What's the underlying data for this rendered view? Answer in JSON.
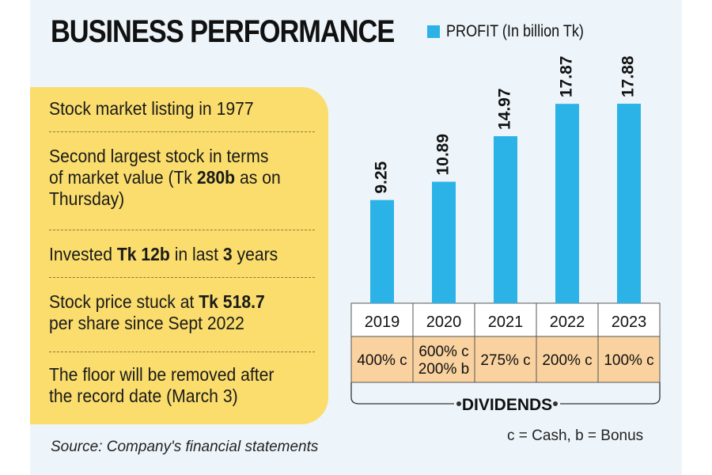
{
  "title": "BUSINESS PERFORMANCE",
  "legend": {
    "label": "PROFIT (In billion Tk)",
    "color": "#2bb3e8"
  },
  "facts": [
    {
      "parts": [
        {
          "t": "Stock market listing in 1977",
          "b": false
        }
      ]
    },
    {
      "parts": [
        {
          "t": "Second largest stock in terms of market value (Tk ",
          "b": false
        },
        {
          "t": "280b",
          "b": true
        },
        {
          "t": " as on Thursday)",
          "b": false
        }
      ]
    },
    {
      "parts": [
        {
          "t": "Invested ",
          "b": false
        },
        {
          "t": "Tk 12b",
          "b": true
        },
        {
          "t": " in last ",
          "b": false
        },
        {
          "t": "3",
          "b": true
        },
        {
          "t": " years",
          "b": false
        }
      ]
    },
    {
      "parts": [
        {
          "t": "Stock price stuck at ",
          "b": false
        },
        {
          "t": "Tk 518.7",
          "b": true
        },
        {
          "t": " per share since Sept 2022",
          "b": false
        }
      ]
    },
    {
      "parts": [
        {
          "t": "The floor will be removed after the record date (March 3)",
          "b": false
        }
      ]
    }
  ],
  "chart_data": {
    "type": "bar",
    "categories": [
      "2019",
      "2020",
      "2021",
      "2022",
      "2023"
    ],
    "values": [
      9.25,
      10.89,
      14.97,
      17.87,
      17.88
    ],
    "value_labels": [
      "9.25",
      "10.89",
      "14.97",
      "17.87",
      "17.88"
    ],
    "series_name": "PROFIT (In billion Tk)",
    "ylim": [
      0,
      21.5
    ],
    "dividends": [
      [
        "400% c"
      ],
      [
        "600% c",
        "200% b"
      ],
      [
        "275% c"
      ],
      [
        "200% c"
      ],
      [
        "100% c"
      ]
    ],
    "dividends_label": "DIVIDENDS",
    "bar_color": "#2bb3e8",
    "dividend_band_color": "#f9d2a0"
  },
  "source": "Source: Company's financial statements",
  "key": "c = Cash, b = Bonus"
}
